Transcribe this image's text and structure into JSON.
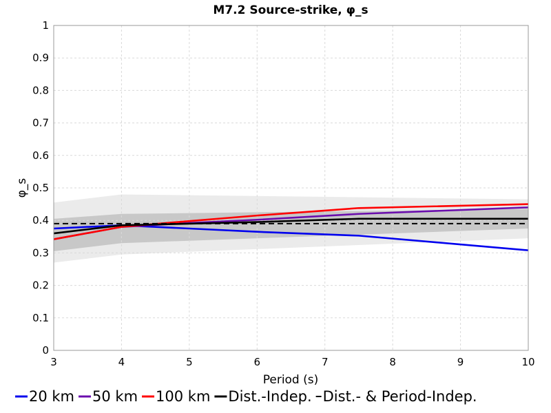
{
  "chart_data": {
    "type": "line",
    "title": "M7.2 Source-strike, φ_s",
    "xlabel": "Period (s)",
    "ylabel": "φ_s",
    "xlim": [
      3,
      10
    ],
    "ylim": [
      0,
      1
    ],
    "xticks": [
      3,
      4,
      5,
      6,
      7,
      8,
      9,
      10
    ],
    "yticks": [
      0,
      0.1,
      0.2,
      0.3,
      0.4,
      0.5,
      0.6,
      0.7,
      0.8,
      0.9,
      1
    ],
    "grid": true,
    "legend_position": "bottom",
    "series": [
      {
        "name": "20 km",
        "color": "#0000ee",
        "style": "solid",
        "x": [
          3,
          4,
          5,
          6,
          7.5,
          10
        ],
        "y": [
          0.375,
          0.385,
          0.375,
          0.365,
          0.353,
          0.308
        ]
      },
      {
        "name": "50 km",
        "color": "#6a0dad",
        "style": "solid",
        "x": [
          3,
          4,
          5,
          6,
          7.5,
          10
        ],
        "y": [
          0.342,
          0.38,
          0.392,
          0.402,
          0.42,
          0.44
        ]
      },
      {
        "name": "100 km",
        "color": "#ff0000",
        "style": "solid",
        "x": [
          3,
          4,
          5,
          6,
          7.5,
          10
        ],
        "y": [
          0.342,
          0.38,
          0.398,
          0.415,
          0.438,
          0.45
        ]
      },
      {
        "name": "Dist.-Indep.",
        "color": "#000000",
        "style": "solid",
        "x": [
          3,
          4,
          5,
          6,
          7.5,
          10
        ],
        "y": [
          0.36,
          0.385,
          0.39,
          0.395,
          0.405,
          0.405
        ]
      },
      {
        "name": "Dist.- & Period-Indep.",
        "color": "#000000",
        "style": "dashed",
        "x": [
          3,
          10
        ],
        "y": [
          0.39,
          0.39
        ]
      }
    ],
    "bands": [
      {
        "color": "#ebebeb",
        "x": [
          3,
          4,
          10
        ],
        "lower": [
          0.27,
          0.295,
          0.345
        ],
        "upper": [
          0.455,
          0.48,
          0.465
        ]
      },
      {
        "color": "#c8c8c8",
        "x": [
          3,
          4,
          10
        ],
        "lower": [
          0.305,
          0.33,
          0.375
        ],
        "upper": [
          0.405,
          0.42,
          0.435
        ]
      }
    ]
  }
}
